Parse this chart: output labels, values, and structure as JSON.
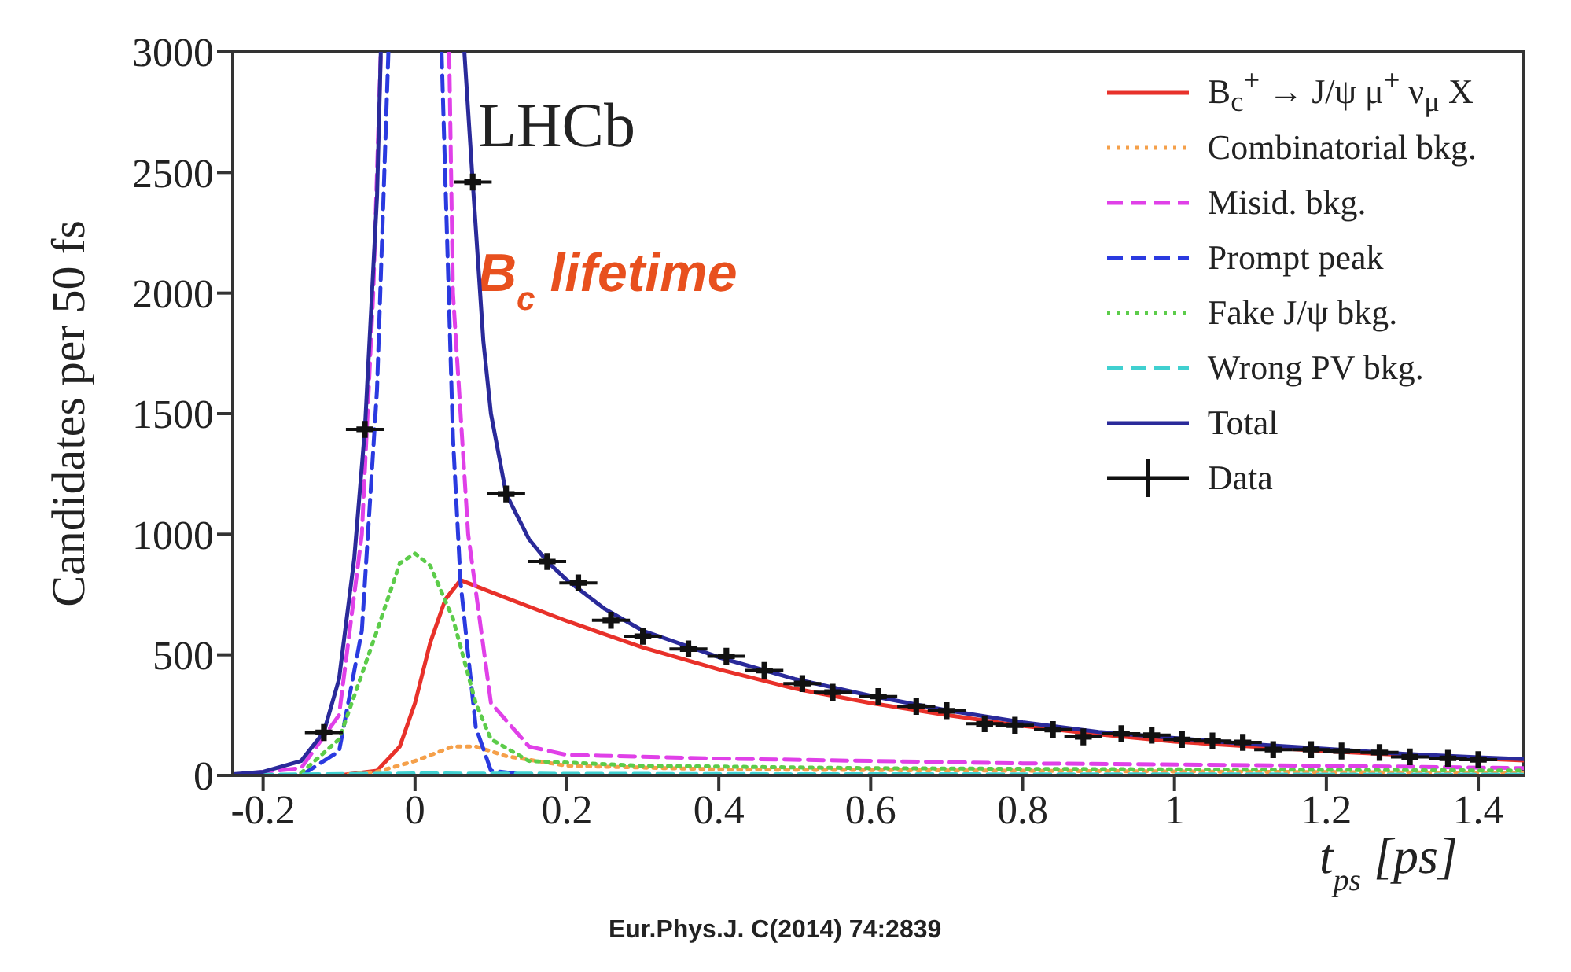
{
  "chart_data": {
    "type": "line",
    "ylabel": "Candidates per 50 fs",
    "xlabel": "t$_{ps}$ [ps]",
    "annotations": [
      "LHCb",
      "B$_{c}$ lifetime",
      "Eur.Phys.J. C(2014) 74:2839"
    ],
    "xlim": [
      -0.24,
      1.46
    ],
    "xticks": [
      -0.2,
      0,
      0.2,
      0.4,
      0.6,
      0.8,
      1,
      1.2,
      1.4
    ],
    "ylim": [
      0,
      3000
    ],
    "yticks": [
      0,
      500,
      1000,
      1500,
      2000,
      2500,
      3000
    ],
    "grid": false,
    "legend": "top right",
    "series": [
      {
        "name": "B$_{c}$$^{+}$ → J/ψ μ$^{+}$ ν$_{μ}$ X",
        "color": "#e8312a",
        "line_style": "solid",
        "marker": "none",
        "x": [
          -0.1,
          -0.05,
          -0.02,
          0,
          0.02,
          0.04,
          0.06,
          0.1,
          0.2,
          0.3,
          0.4,
          0.5,
          0.6,
          0.7,
          0.8,
          0.9,
          1.0,
          1.2,
          1.4,
          1.46
        ],
        "values": [
          0,
          20,
          120,
          300,
          550,
          730,
          810,
          760,
          640,
          530,
          440,
          360,
          300,
          250,
          205,
          170,
          140,
          100,
          70,
          62
        ]
      },
      {
        "name": "Combinatorial bkg.",
        "color": "#f5a04a",
        "line_style": "dotted",
        "marker": "none",
        "x": [
          -0.1,
          -0.05,
          0,
          0.05,
          0.08,
          0.12,
          0.2,
          0.4,
          1.46
        ],
        "values": [
          0,
          15,
          60,
          120,
          120,
          80,
          40,
          25,
          10
        ]
      },
      {
        "name": "Misid. bkg.",
        "color": "#e040e8",
        "line_style": "dashed",
        "marker": "none",
        "x": [
          -0.24,
          -0.15,
          -0.1,
          -0.07,
          -0.055,
          -0.045,
          0,
          0.045,
          0.05,
          0.07,
          0.1,
          0.15,
          0.2,
          0.4,
          0.8,
          1.2,
          1.46
        ],
        "values": [
          2,
          30,
          250,
          1000,
          2000,
          3000,
          null,
          3000,
          2000,
          1000,
          300,
          120,
          85,
          70,
          50,
          40,
          30
        ]
      },
      {
        "name": "Prompt peak",
        "color": "#2a3ae0",
        "line_style": "dashed",
        "marker": "none",
        "x": [
          -0.15,
          -0.1,
          -0.07,
          -0.05,
          -0.035,
          0,
          0.035,
          0.05,
          0.06,
          0.08,
          0.1,
          0.15
        ],
        "values": [
          0,
          100,
          600,
          1600,
          3000,
          null,
          3000,
          1400,
          800,
          200,
          20,
          0
        ]
      },
      {
        "name": "Fake J/ψ bkg.",
        "color": "#5ccc4a",
        "line_style": "dotted",
        "marker": "none",
        "x": [
          -0.15,
          -0.1,
          -0.05,
          -0.02,
          0,
          0.02,
          0.05,
          0.08,
          0.1,
          0.15,
          0.3,
          0.6,
          1.0,
          1.46
        ],
        "values": [
          10,
          150,
          600,
          880,
          920,
          870,
          650,
          300,
          150,
          60,
          40,
          30,
          25,
          20
        ]
      },
      {
        "name": "Wrong PV bkg.",
        "color": "#40d0d0",
        "line_style": "dashed",
        "marker": "none",
        "x": [
          -0.24,
          0,
          0.5,
          1.46
        ],
        "values": [
          2,
          8,
          5,
          3
        ]
      },
      {
        "name": "Total",
        "color": "#2a2a9a",
        "line_style": "solid",
        "marker": "none",
        "x": [
          -0.24,
          -0.2,
          -0.15,
          -0.12,
          -0.1,
          -0.08,
          -0.066,
          -0.05,
          -0.045,
          0,
          0.065,
          0.076,
          0.09,
          0.1,
          0.12,
          0.15,
          0.174,
          0.2,
          0.25,
          0.3,
          0.4,
          0.5,
          0.6,
          0.7,
          0.8,
          0.9,
          1.0,
          1.1,
          1.2,
          1.3,
          1.4,
          1.46
        ],
        "values": [
          5,
          15,
          60,
          180,
          400,
          900,
          1435,
          2400,
          3000,
          null,
          3000,
          2460,
          1800,
          1500,
          1167,
          980,
          887,
          810,
          690,
          600,
          490,
          400,
          330,
          270,
          220,
          180,
          155,
          130,
          110,
          90,
          75,
          68
        ]
      },
      {
        "name": "Data",
        "type": "scatter",
        "color": "#111111",
        "marker": "cross",
        "x": [
          -0.12,
          -0.066,
          0.076,
          0.12,
          0.174,
          0.215,
          0.258,
          0.3,
          0.36,
          0.41,
          0.46,
          0.51,
          0.55,
          0.61,
          0.66,
          0.7,
          0.75,
          0.79,
          0.84,
          0.88,
          0.93,
          0.97,
          1.01,
          1.05,
          1.09,
          1.13,
          1.18,
          1.22,
          1.27,
          1.31,
          1.36,
          1.4
        ],
        "values": [
          178,
          1435,
          2460,
          1167,
          887,
          798,
          643,
          577,
          524,
          494,
          435,
          381,
          345,
          327,
          286,
          268,
          214,
          208,
          190,
          160,
          173,
          167,
          149,
          143,
          137,
          107,
          107,
          101,
          95,
          77,
          71,
          65
        ],
        "xerrors": [
          0.025,
          0.025,
          0.025,
          0.025,
          0.025,
          0.025,
          0.025,
          0.025,
          0.025,
          0.025,
          0.025,
          0.025,
          0.025,
          0.025,
          0.025,
          0.025,
          0.025,
          0.025,
          0.025,
          0.025,
          0.025,
          0.025,
          0.025,
          0.025,
          0.025,
          0.025,
          0.025,
          0.025,
          0.025,
          0.025,
          0.025,
          0.025
        ]
      }
    ]
  }
}
